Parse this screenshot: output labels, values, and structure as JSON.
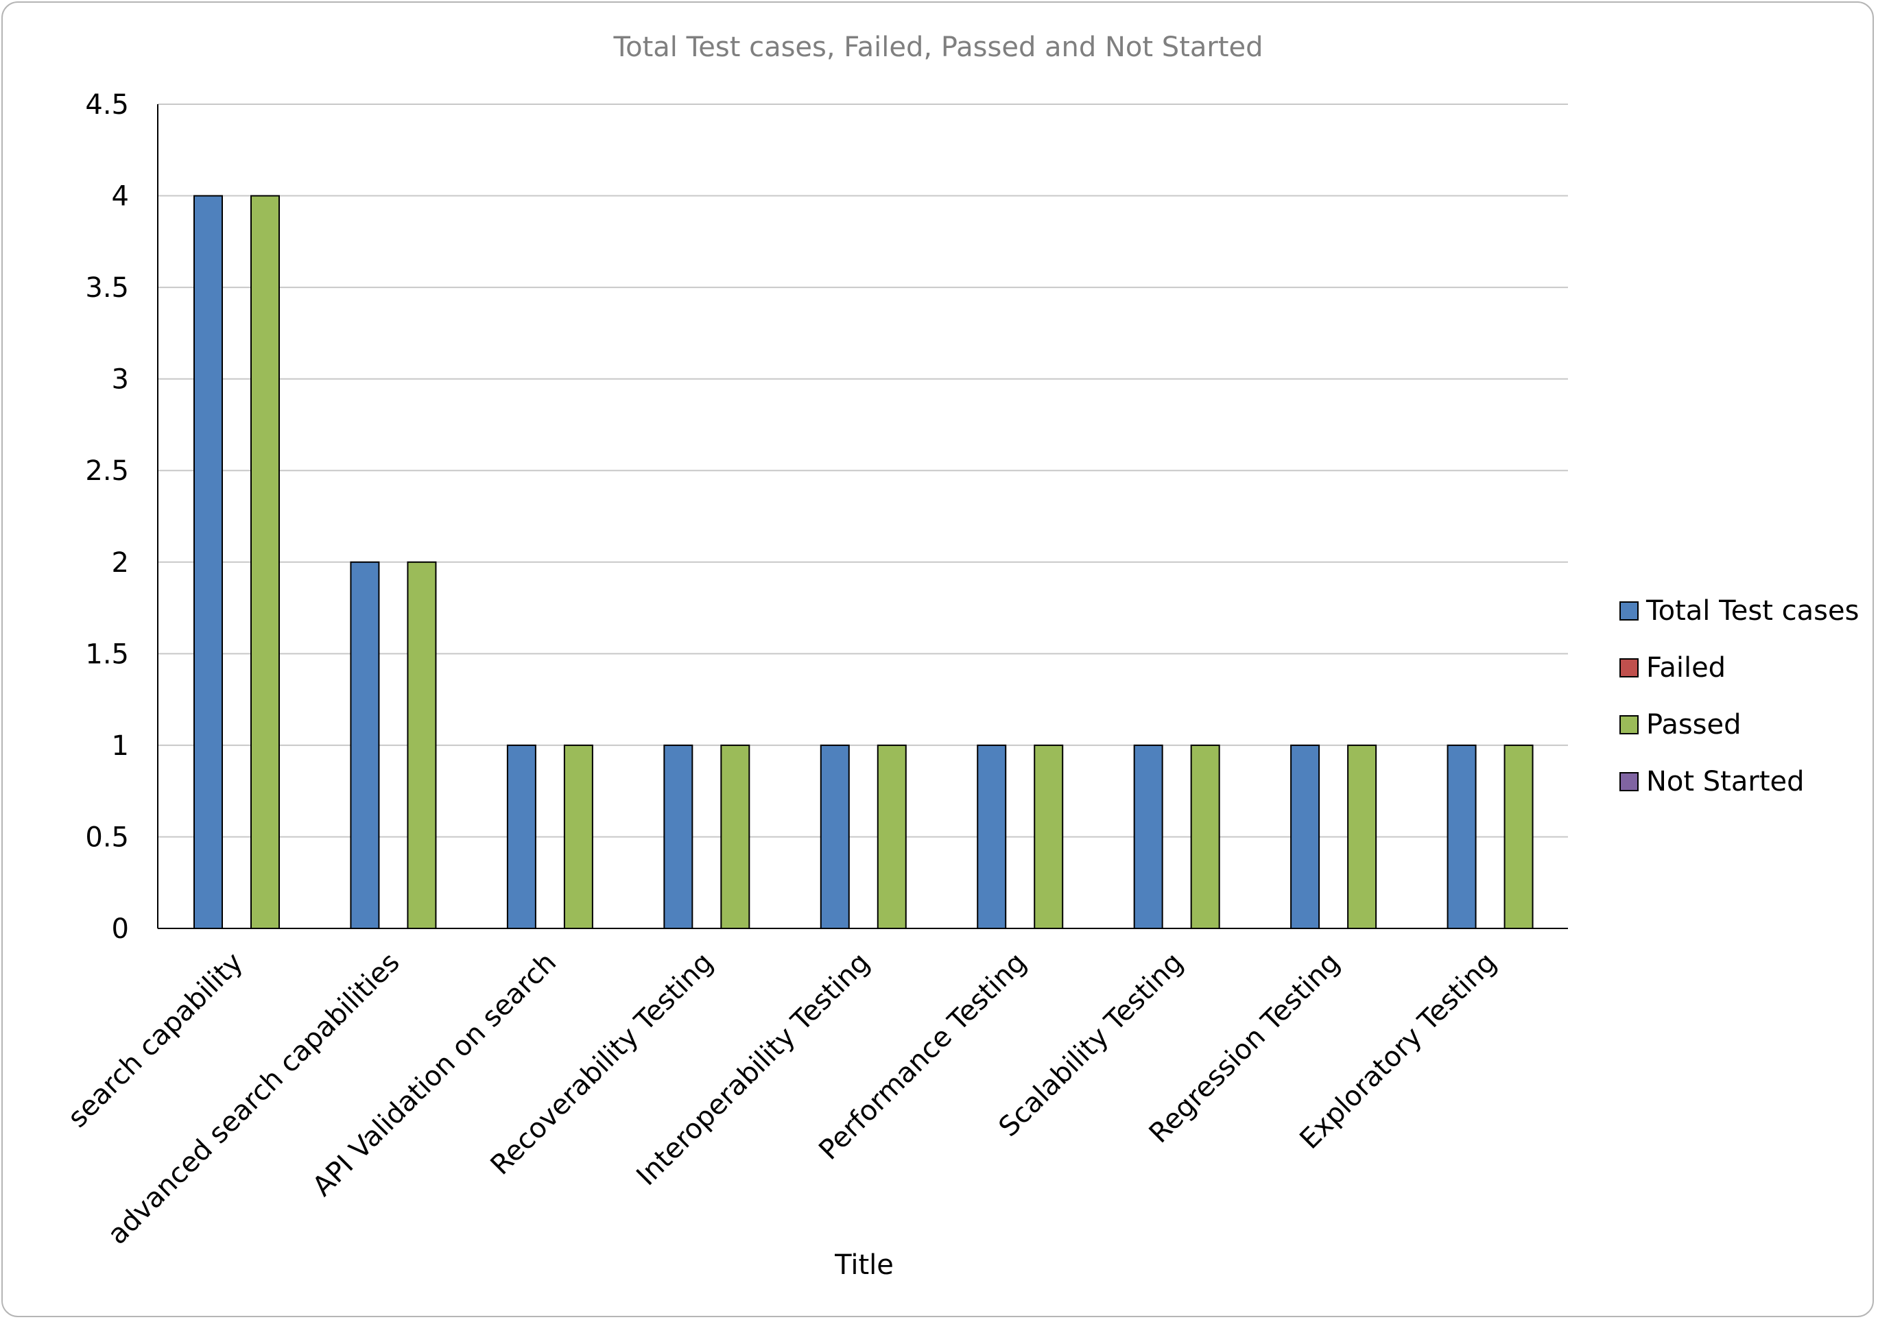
{
  "chart_data": {
    "type": "bar",
    "title": "Total Test cases, Failed, Passed and Not Started",
    "xlabel": "Title",
    "ylabel": "",
    "ylim": [
      0,
      4.5
    ],
    "ytick_step": 0.5,
    "yticks": [
      "0",
      "0.5",
      "1",
      "1.5",
      "2",
      "2.5",
      "3",
      "3.5",
      "4",
      "4.5"
    ],
    "grid": true,
    "legend_position": "right",
    "categories": [
      "search capability",
      "advanced search capabilities",
      "API Validation on search",
      "Recoverability Testing",
      "Interoperability Testing",
      "Performance Testing",
      "Scalability Testing",
      "Regression Testing",
      "Exploratory Testing"
    ],
    "series": [
      {
        "name": "Total Test cases",
        "color": "#4f81bd",
        "values": [
          4,
          2,
          1,
          1,
          1,
          1,
          1,
          1,
          1
        ]
      },
      {
        "name": "Failed",
        "color": "#c0504d",
        "values": [
          0,
          0,
          0,
          0,
          0,
          0,
          0,
          0,
          0
        ]
      },
      {
        "name": "Passed",
        "color": "#9bbb59",
        "values": [
          4,
          2,
          1,
          1,
          1,
          1,
          1,
          1,
          1
        ]
      },
      {
        "name": "Not Started",
        "color": "#8064a2",
        "values": [
          0,
          0,
          0,
          0,
          0,
          0,
          0,
          0,
          0
        ]
      }
    ]
  }
}
